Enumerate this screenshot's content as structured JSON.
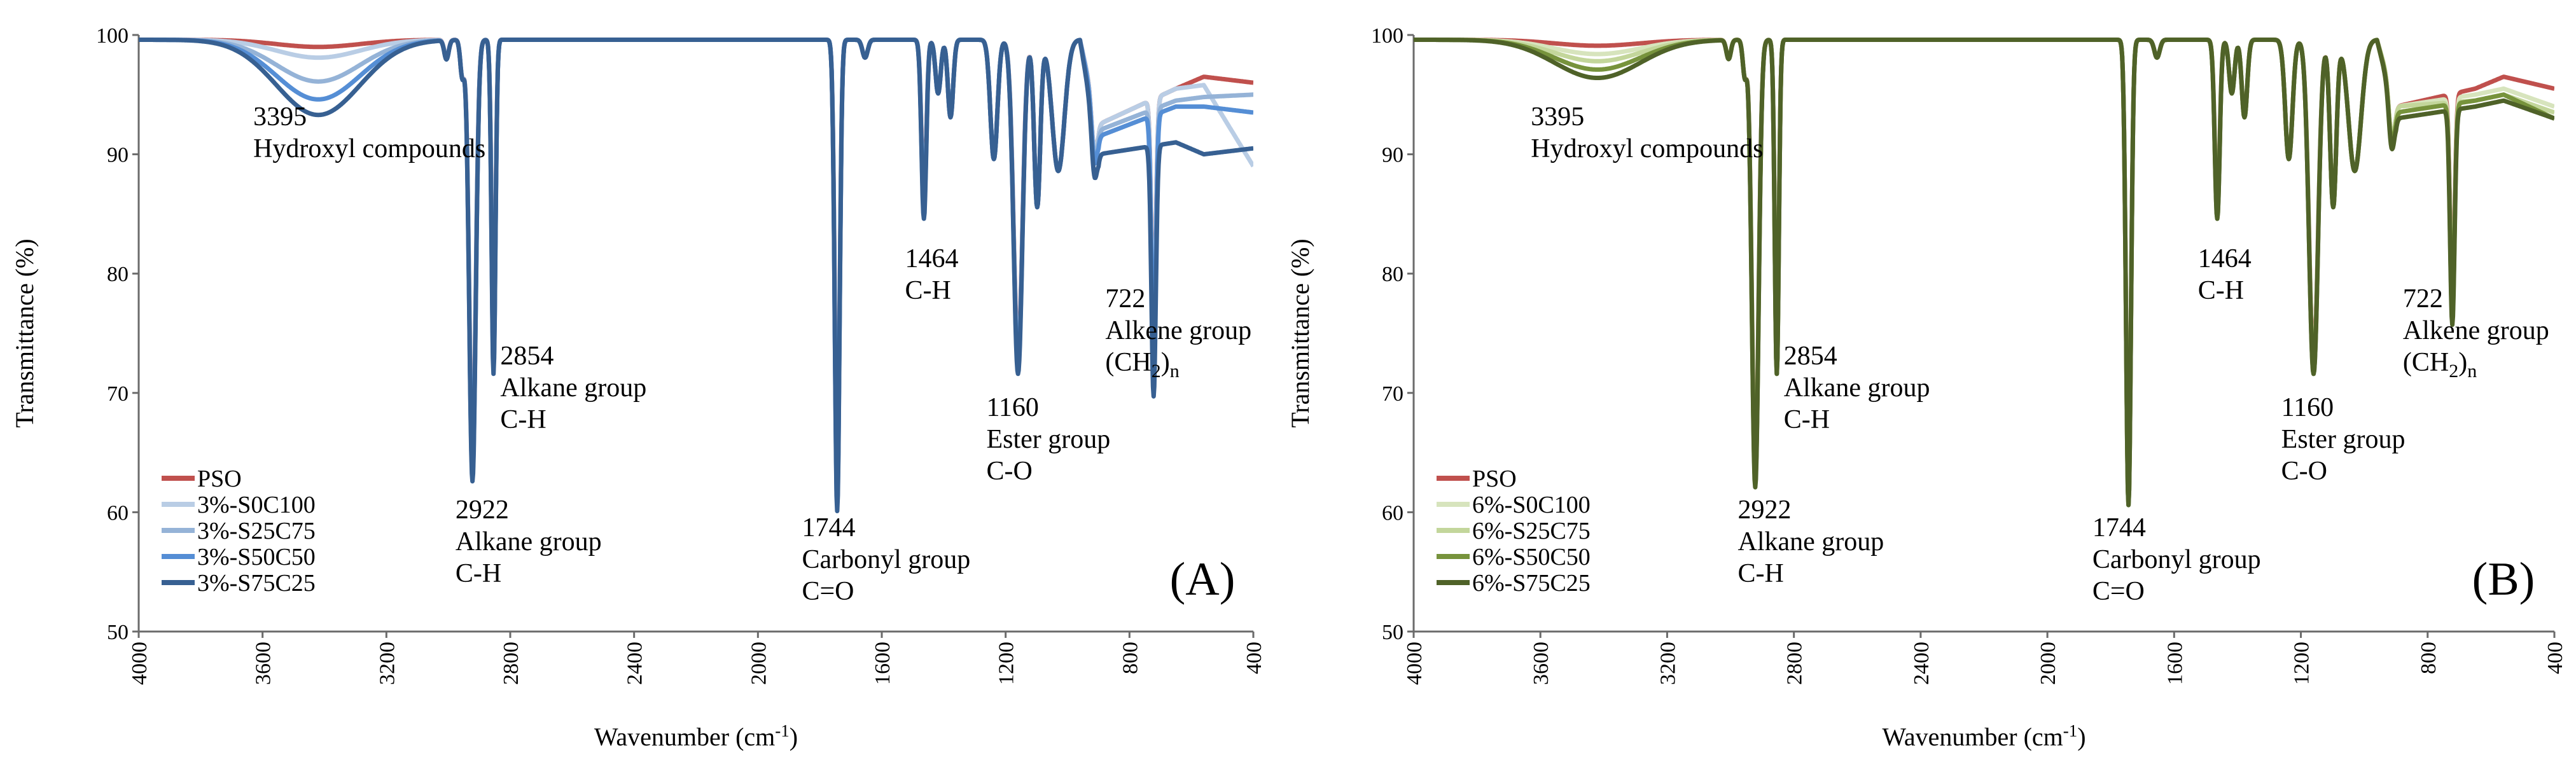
{
  "chart_data": [
    {
      "type": "line",
      "panel_label": "(A)",
      "xlabel": "Wavenumber (cm-1)",
      "xlabel_main": "Wavenumber (cm",
      "xlabel_sup": "-1",
      "xlabel_close": ")",
      "ylabel": "Transmittance (%)",
      "xlim": [
        4000,
        400
      ],
      "x_reversed": true,
      "ylim": [
        50,
        100
      ],
      "xticks": [
        4000,
        3600,
        3200,
        2800,
        2400,
        2000,
        1600,
        1200,
        800,
        400
      ],
      "yticks": [
        50,
        60,
        70,
        80,
        90,
        100
      ],
      "grid": false,
      "legend_position": "bottom-left",
      "peaks": [
        3395,
        2922,
        2854,
        1744,
        1464,
        1160,
        722
      ],
      "annotations": {
        "a3395": [
          "3395",
          "Hydroxyl compounds"
        ],
        "a2922": [
          "2922",
          "Alkane group",
          "C-H"
        ],
        "a2854": [
          "2854",
          "Alkane group",
          "C-H"
        ],
        "a1744": [
          "1744",
          "Carbonyl group",
          "C=O"
        ],
        "a1464": [
          "1464",
          "C-H"
        ],
        "a1160": [
          "1160",
          "Ester group",
          "C-O"
        ],
        "a722": [
          "722",
          "Alkene group",
          "(CH",
          "2",
          ")",
          "n"
        ]
      },
      "series": [
        {
          "name": "PSO",
          "color": "#c0504d",
          "oh_dip": 0.6,
          "depths": {
            "2922": 35,
            "2854": 26,
            "1744": 37,
            "1464": 13,
            "1160": 26,
            "722": 19
          },
          "tail": [
            [
              900,
              92.5
            ],
            [
              650,
              95.5
            ],
            [
              560,
              96.5
            ],
            [
              400,
              96
            ]
          ]
        },
        {
          "name": "3%-S0C100",
          "color": "#b9cde5",
          "oh_dip": 1.5,
          "depths": {
            "2922": 35.5,
            "2854": 26.5,
            "1744": 38,
            "1464": 13.5,
            "1160": 26.5,
            "722": 20
          },
          "tail": [
            [
              900,
              92.5
            ],
            [
              650,
              95.5
            ],
            [
              560,
              95.8
            ],
            [
              400,
              89
            ]
          ]
        },
        {
          "name": "3%-S25C75",
          "color": "#95b3d7",
          "oh_dip": 3.5,
          "depths": {
            "2922": 36,
            "2854": 27,
            "1744": 38.5,
            "1464": 14,
            "1160": 27,
            "722": 20.5
          },
          "tail": [
            [
              900,
              92
            ],
            [
              650,
              94.5
            ],
            [
              560,
              94.8
            ],
            [
              400,
              95
            ]
          ]
        },
        {
          "name": "3%-S50C50",
          "color": "#558ed5",
          "oh_dip": 5,
          "depths": {
            "2922": 36.5,
            "2854": 27.5,
            "1744": 39,
            "1464": 14.5,
            "1160": 27.5,
            "722": 20.5
          },
          "tail": [
            [
              900,
              91.5
            ],
            [
              650,
              94
            ],
            [
              560,
              94
            ],
            [
              400,
              93.5
            ]
          ]
        },
        {
          "name": "3%-S75C25",
          "color": "#376092",
          "oh_dip": 6.3,
          "depths": {
            "2922": 37,
            "2854": 28,
            "1744": 39.5,
            "1464": 15,
            "1160": 28,
            "722": 21
          },
          "tail": [
            [
              900,
              90
            ],
            [
              650,
              91
            ],
            [
              560,
              90
            ],
            [
              400,
              90.5
            ]
          ]
        }
      ]
    },
    {
      "type": "line",
      "panel_label": "(B)",
      "xlabel": "Wavenumber (cm-1)",
      "xlabel_main": "Wavenumber (cm",
      "xlabel_sup": "-1",
      "xlabel_close": ")",
      "ylabel": "Transmittance (%)",
      "xlim": [
        4000,
        400
      ],
      "x_reversed": true,
      "ylim": [
        50,
        100
      ],
      "xticks": [
        4000,
        3600,
        3200,
        2800,
        2400,
        2000,
        1600,
        1200,
        800,
        400
      ],
      "yticks": [
        50,
        60,
        70,
        80,
        90,
        100
      ],
      "grid": false,
      "legend_position": "bottom-left",
      "peaks": [
        3395,
        2922,
        2854,
        1744,
        1464,
        1160,
        722
      ],
      "annotations": {
        "a3395": [
          "3395",
          "Hydroxyl compounds"
        ],
        "a2922": [
          "2922",
          "Alkane group",
          "C-H"
        ],
        "a2854": [
          "2854",
          "Alkane group",
          "C-H"
        ],
        "a1744": [
          "1744",
          "Carbonyl group",
          "C=O"
        ],
        "a1464": [
          "1464",
          "C-H"
        ],
        "a1160": [
          "1160",
          "Ester group",
          "C-O"
        ],
        "a722": [
          "722",
          "Alkene group",
          "(CH",
          "2",
          ")",
          "n"
        ]
      },
      "series": [
        {
          "name": "PSO",
          "color": "#c0504d",
          "oh_dip": 0.5,
          "depths": {
            "2922": 36,
            "2854": 27,
            "1744": 38.5,
            "1464": 14,
            "1160": 27,
            "722": 17
          },
          "tail": [
            [
              900,
              94
            ],
            [
              650,
              95.5
            ],
            [
              560,
              96.5
            ],
            [
              400,
              95.5
            ]
          ]
        },
        {
          "name": "6%-S0C100",
          "color": "#d7e4bd",
          "oh_dip": 1.2,
          "depths": {
            "2922": 36.5,
            "2854": 27.5,
            "1744": 38.5,
            "1464": 14.5,
            "1160": 27.5,
            "722": 17.5
          },
          "tail": [
            [
              900,
              94
            ],
            [
              650,
              95
            ],
            [
              560,
              95.5
            ],
            [
              400,
              94
            ]
          ]
        },
        {
          "name": "6%-S25C75",
          "color": "#c3d69b",
          "oh_dip": 1.8,
          "depths": {
            "2922": 37,
            "2854": 28,
            "1744": 39,
            "1464": 14.5,
            "1160": 27.5,
            "722": 17.5
          },
          "tail": [
            [
              900,
              94
            ],
            [
              650,
              94.5
            ],
            [
              560,
              95
            ],
            [
              400,
              93.5
            ]
          ]
        },
        {
          "name": "6%-S50C50",
          "color": "#77933c",
          "oh_dip": 2.5,
          "depths": {
            "2922": 37,
            "2854": 28,
            "1744": 39,
            "1464": 15,
            "1160": 28,
            "722": 18
          },
          "tail": [
            [
              900,
              93.5
            ],
            [
              650,
              94.5
            ],
            [
              560,
              95
            ],
            [
              400,
              93
            ]
          ]
        },
        {
          "name": "6%-S75C25",
          "color": "#4f6228",
          "oh_dip": 3.2,
          "depths": {
            "2922": 37.5,
            "2854": 28,
            "1744": 39,
            "1464": 15,
            "1160": 28,
            "722": 18
          },
          "tail": [
            [
              900,
              93
            ],
            [
              650,
              94
            ],
            [
              560,
              94.5
            ],
            [
              400,
              93
            ]
          ]
        }
      ]
    }
  ]
}
